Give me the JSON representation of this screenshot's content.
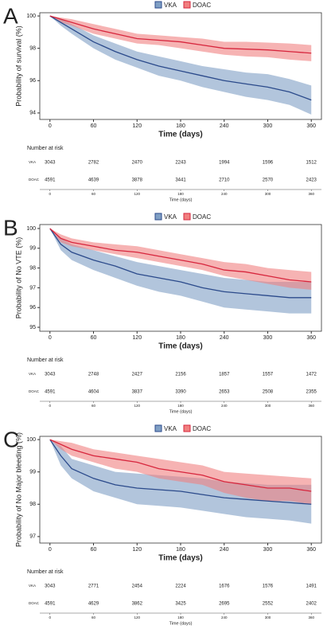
{
  "chart_data": [
    {
      "type": "km",
      "panel": "A",
      "ylabel": "Probability of survival (%)",
      "xlabel": "Time (days)",
      "x": [
        0,
        15,
        30,
        60,
        90,
        120,
        150,
        180,
        210,
        240,
        270,
        300,
        330,
        360
      ],
      "xlim": [
        -14,
        374
      ],
      "xticks": [
        0,
        60,
        120,
        180,
        240,
        300,
        360
      ],
      "ylim": [
        93.6,
        100.2
      ],
      "yticks": [
        94,
        96,
        98,
        100
      ],
      "series": [
        {
          "name": "VKA",
          "color": "#2b4a8b",
          "band_color": "#7f9fc4",
          "values": [
            100,
            99.6,
            99.2,
            98.4,
            97.8,
            97.3,
            96.9,
            96.6,
            96.3,
            96.0,
            95.8,
            95.6,
            95.3,
            94.8
          ],
          "lower": [
            100,
            99.4,
            98.9,
            98.0,
            97.3,
            96.8,
            96.3,
            96.0,
            95.6,
            95.3,
            95.0,
            94.8,
            94.5,
            93.9
          ],
          "upper": [
            100,
            99.8,
            99.5,
            98.8,
            98.3,
            97.8,
            97.5,
            97.2,
            96.9,
            96.7,
            96.5,
            96.4,
            96.1,
            95.7
          ]
        },
        {
          "name": "DOAC",
          "color": "#d7263d",
          "band_color": "#f08080",
          "values": [
            100,
            99.8,
            99.6,
            99.2,
            98.9,
            98.6,
            98.5,
            98.4,
            98.2,
            98.0,
            97.95,
            97.9,
            97.8,
            97.7
          ],
          "lower": [
            100,
            99.6,
            99.4,
            98.9,
            98.6,
            98.3,
            98.2,
            98.0,
            97.8,
            97.6,
            97.5,
            97.45,
            97.3,
            97.2
          ],
          "upper": [
            100,
            99.9,
            99.8,
            99.5,
            99.2,
            98.9,
            98.8,
            98.7,
            98.6,
            98.4,
            98.4,
            98.35,
            98.3,
            98.2
          ]
        }
      ],
      "risk_table": {
        "title": "Number at risk",
        "times": [
          0,
          60,
          120,
          180,
          240,
          300,
          360
        ],
        "rows": [
          {
            "name": "VKA",
            "values": [
              3043,
              2782,
              2470,
              2243,
              1994,
              1596,
              1512
            ]
          },
          {
            "name": "DOAC",
            "values": [
              4591,
              4639,
              3878,
              3441,
              2710,
              2570,
              2423
            ]
          }
        ]
      }
    },
    {
      "type": "km",
      "panel": "B",
      "ylabel": "Probability of No VTE (%)",
      "xlabel": "Time (days)",
      "x": [
        0,
        15,
        30,
        60,
        90,
        120,
        150,
        180,
        210,
        240,
        270,
        300,
        330,
        360
      ],
      "xlim": [
        -14,
        374
      ],
      "xticks": [
        0,
        60,
        120,
        180,
        240,
        300,
        360
      ],
      "ylim": [
        94.8,
        100.2
      ],
      "yticks": [
        95,
        96,
        97,
        98,
        99,
        100
      ],
      "series": [
        {
          "name": "VKA",
          "color": "#2b4a8b",
          "band_color": "#7f9fc4",
          "values": [
            100,
            99.2,
            98.8,
            98.4,
            98.1,
            97.7,
            97.5,
            97.3,
            97.0,
            96.8,
            96.7,
            96.6,
            96.5,
            96.5
          ],
          "lower": [
            100,
            98.9,
            98.4,
            97.9,
            97.5,
            97.1,
            96.8,
            96.6,
            96.3,
            96.0,
            95.9,
            95.8,
            95.7,
            95.7
          ],
          "upper": [
            100,
            99.5,
            99.2,
            98.9,
            98.6,
            98.3,
            98.1,
            97.9,
            97.7,
            97.5,
            97.4,
            97.3,
            97.3,
            97.3
          ]
        },
        {
          "name": "DOAC",
          "color": "#d7263d",
          "band_color": "#f08080",
          "values": [
            100,
            99.5,
            99.3,
            99.1,
            98.9,
            98.8,
            98.6,
            98.4,
            98.2,
            97.9,
            97.8,
            97.6,
            97.4,
            97.3
          ],
          "lower": [
            100,
            99.3,
            99.1,
            98.9,
            98.7,
            98.5,
            98.3,
            98.1,
            97.9,
            97.6,
            97.4,
            97.2,
            97.0,
            96.9
          ],
          "upper": [
            100,
            99.7,
            99.5,
            99.3,
            99.2,
            99.1,
            98.9,
            98.7,
            98.5,
            98.3,
            98.2,
            98.0,
            97.9,
            97.8
          ]
        }
      ],
      "risk_table": {
        "title": "Number at risk",
        "times": [
          0,
          60,
          120,
          180,
          240,
          300,
          360
        ],
        "rows": [
          {
            "name": "VKA",
            "values": [
              3043,
              2748,
              2427,
              2156,
              1857,
              1557,
              1472
            ]
          },
          {
            "name": "DOAC",
            "values": [
              4591,
              4604,
              3837,
              3390,
              2653,
              2508,
              2355
            ]
          }
        ]
      }
    },
    {
      "type": "km",
      "panel": "C",
      "ylabel": "Probability of No Major bleeding (%)",
      "xlabel": "Time (days)",
      "x": [
        0,
        15,
        30,
        60,
        90,
        120,
        150,
        180,
        210,
        240,
        270,
        300,
        330,
        360
      ],
      "xlim": [
        -14,
        374
      ],
      "xticks": [
        0,
        60,
        120,
        180,
        240,
        300,
        360
      ],
      "ylim": [
        96.8,
        100.1
      ],
      "yticks": [
        97,
        98,
        99,
        100
      ],
      "series": [
        {
          "name": "VKA",
          "color": "#2b4a8b",
          "band_color": "#7f9fc4",
          "values": [
            100,
            99.5,
            99.1,
            98.8,
            98.6,
            98.5,
            98.45,
            98.4,
            98.3,
            98.2,
            98.15,
            98.1,
            98.05,
            98.0
          ],
          "lower": [
            100,
            99.2,
            98.8,
            98.4,
            98.2,
            98.0,
            97.95,
            97.9,
            97.8,
            97.7,
            97.6,
            97.55,
            97.5,
            97.4
          ],
          "upper": [
            100,
            99.8,
            99.4,
            99.2,
            99.0,
            98.95,
            98.9,
            98.85,
            98.8,
            98.7,
            98.65,
            98.6,
            98.6,
            98.6
          ]
        },
        {
          "name": "DOAC",
          "color": "#d7263d",
          "band_color": "#f08080",
          "values": [
            100,
            99.85,
            99.7,
            99.5,
            99.4,
            99.3,
            99.1,
            99.0,
            98.9,
            98.7,
            98.6,
            98.5,
            98.5,
            98.4
          ],
          "lower": [
            100,
            99.7,
            99.5,
            99.3,
            99.1,
            99.0,
            98.8,
            98.7,
            98.6,
            98.35,
            98.2,
            98.1,
            98.1,
            98.0
          ],
          "upper": [
            100,
            99.95,
            99.9,
            99.7,
            99.6,
            99.5,
            99.4,
            99.3,
            99.2,
            99.0,
            98.95,
            98.9,
            98.85,
            98.8
          ]
        }
      ],
      "risk_table": {
        "title": "Number at risk",
        "times": [
          0,
          60,
          120,
          180,
          240,
          300,
          360
        ],
        "rows": [
          {
            "name": "VKA",
            "values": [
              3043,
              2771,
              2454,
              2224,
              1676,
              1576,
              1491
            ]
          },
          {
            "name": "DOAC",
            "values": [
              4591,
              4629,
              3862,
              3425,
              2695,
              2552,
              2402
            ]
          }
        ]
      }
    }
  ]
}
